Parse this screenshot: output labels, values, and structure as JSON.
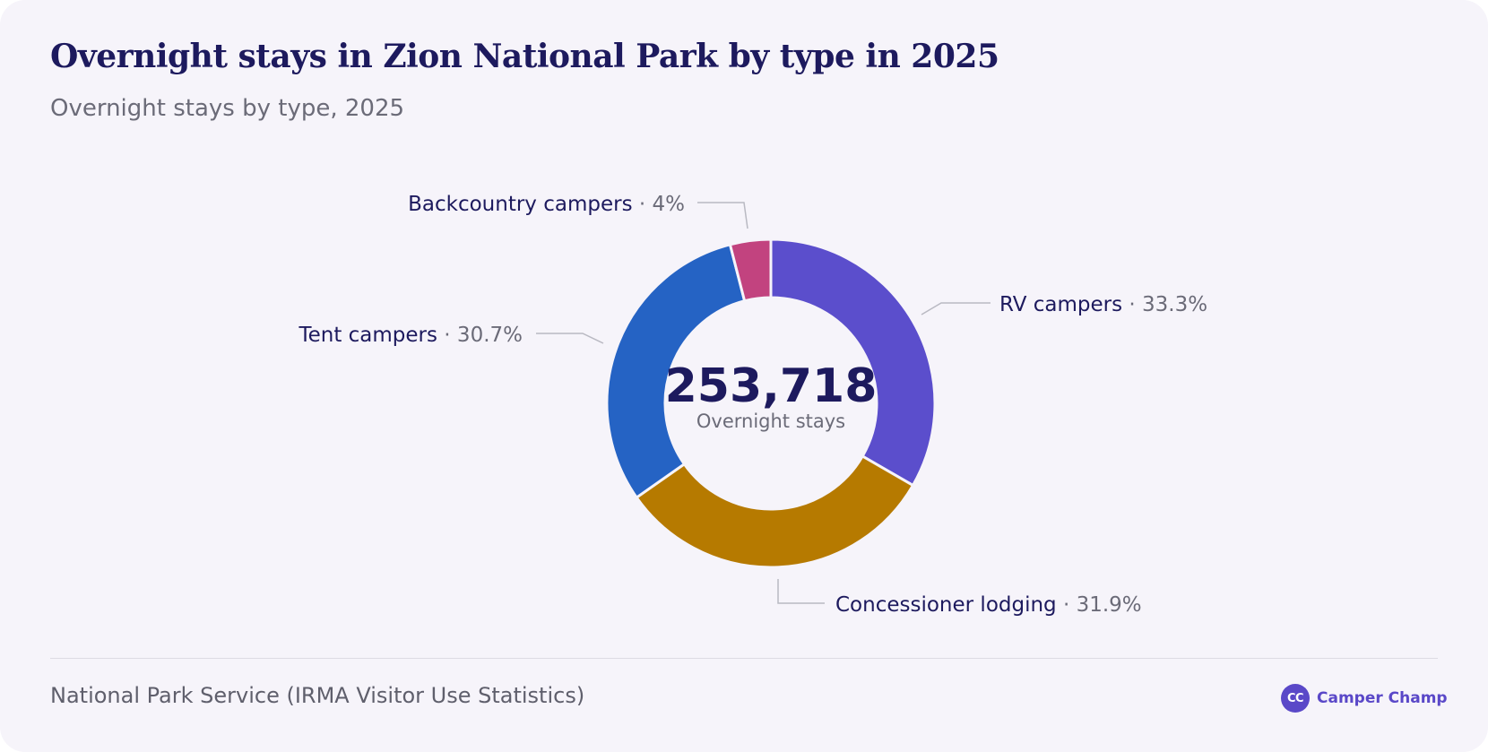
{
  "header": {
    "title": "Overnight stays in Zion National Park by type in 2025",
    "subtitle": "Overnight stays by type, 2025"
  },
  "chart_data": {
    "type": "pie",
    "variant": "donut",
    "title": "Overnight stays in Zion National Park by type in 2025",
    "subtitle": "Overnight stays by type, 2025",
    "center_value": "253,718",
    "center_label": "Overnight stays",
    "slices": [
      {
        "label": "RV campers",
        "value": 33.3,
        "display": "33.3%",
        "color": "#5b4ecc"
      },
      {
        "label": "Concessioner lodging",
        "value": 31.9,
        "display": "31.9%",
        "color": "#b67a00"
      },
      {
        "label": "Tent campers",
        "value": 30.7,
        "display": "30.7%",
        "color": "#2563c4"
      },
      {
        "label": "Backcountry campers",
        "value": 4,
        "display": "4%",
        "color": "#c2437f"
      }
    ],
    "label_separator": " · ",
    "colors": {
      "label_name": "#1d1a5e",
      "label_value": "#6b6b78",
      "leader_line": "#b9b9c2",
      "center_value": "#1d1a5e",
      "center_label": "#6b6b78"
    }
  },
  "footer": {
    "source": "National Park Service (IRMA Visitor Use Statistics)",
    "brand_logo": "CC",
    "brand_name": "Camper Champ",
    "brand_color": "#5a48c8"
  }
}
